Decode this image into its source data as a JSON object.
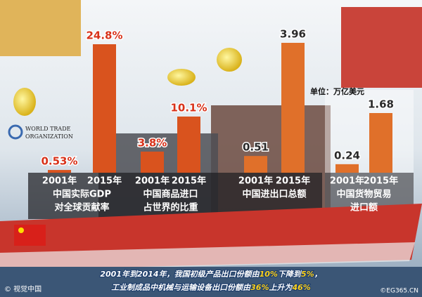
{
  "chart_data": [
    {
      "type": "bar",
      "title": [
        "中国实际GDP",
        "对全球贡献率"
      ],
      "categories": [
        "2001年",
        "2015年"
      ],
      "values": [
        0.53,
        24.8
      ],
      "value_labels": [
        "0.53%",
        "24.8%"
      ],
      "color": "#d9531e",
      "label_color": "#d8321a"
    },
    {
      "type": "bar",
      "title": [
        "中国商品进口",
        "占世界的比重"
      ],
      "categories": [
        "2001年",
        "2015年"
      ],
      "values": [
        3.8,
        10.1
      ],
      "value_labels": [
        "3.8%",
        "10.1%"
      ],
      "color": "#d9531e",
      "label_color": "#d8321a"
    },
    {
      "type": "bar",
      "title": [
        "中国进出口总额"
      ],
      "categories": [
        "2001年",
        "2015年"
      ],
      "values": [
        0.51,
        3.96
      ],
      "color": "#e0702a",
      "label_color": "#2a2a2a"
    },
    {
      "type": "bar",
      "title": [
        "中国货物贸易",
        "进口额"
      ],
      "categories": [
        "2001年",
        "2015年"
      ],
      "values": [
        0.24,
        1.68
      ],
      "color": "#e0702a",
      "label_color": "#2a2a2a"
    }
  ],
  "unit": "单位：万亿美元",
  "logo": [
    "WORLD TRADE",
    "ORGANIZATION"
  ],
  "footer": [
    [
      "2001年到2014年，我国初级产品出口份额由",
      "10%",
      "下降到",
      "5%",
      "，"
    ],
    [
      "工业制成品中机械与运输设备出口份额由",
      "36%",
      "上升为",
      "46%"
    ]
  ],
  "credit_left": "© 视觉中国",
  "credit_right": "©EG365.CN"
}
